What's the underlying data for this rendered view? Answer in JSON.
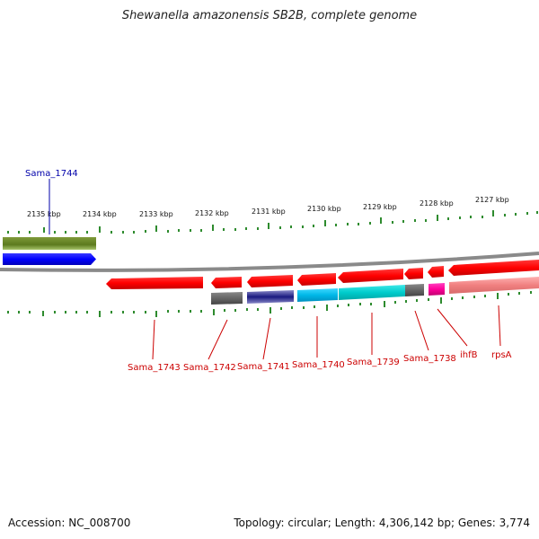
{
  "title": "Shewanella amazonensis SB2B, complete genome",
  "ticks": [
    "2135 kbp",
    "2134 kbp",
    "2133 kbp",
    "2132 kbp",
    "2131 kbp",
    "2130 kbp",
    "2129 kbp",
    "2128 kbp",
    "2127 kbp"
  ],
  "genes": [
    {
      "label": "Sama_1744",
      "color": "#0000ff",
      "label_color": "#0000aa"
    },
    {
      "label": "Sama_1743",
      "color": "#ff0000",
      "label_color": "#cc0000"
    },
    {
      "label": "Sama_1742",
      "color": "#ff0000",
      "label_color": "#cc0000"
    },
    {
      "label": "Sama_1741",
      "color": "#ff0000",
      "label_color": "#cc0000"
    },
    {
      "label": "Sama_1740",
      "color": "#ff0000",
      "label_color": "#cc0000"
    },
    {
      "label": "Sama_1739",
      "color": "#ff0000",
      "label_color": "#cc0000"
    },
    {
      "label": "Sama_1738",
      "color": "#ff0000",
      "label_color": "#cc0000"
    },
    {
      "label": "ihfB",
      "color": "#ff0000",
      "label_color": "#cc0000"
    },
    {
      "label": "rpsA",
      "color": "#ff0000",
      "label_color": "#cc0000"
    }
  ],
  "footer": {
    "accession": "Accession: NC_008700",
    "summary": "Topology: circular; Length: 4,306,142 bp; Genes: 3,774"
  }
}
